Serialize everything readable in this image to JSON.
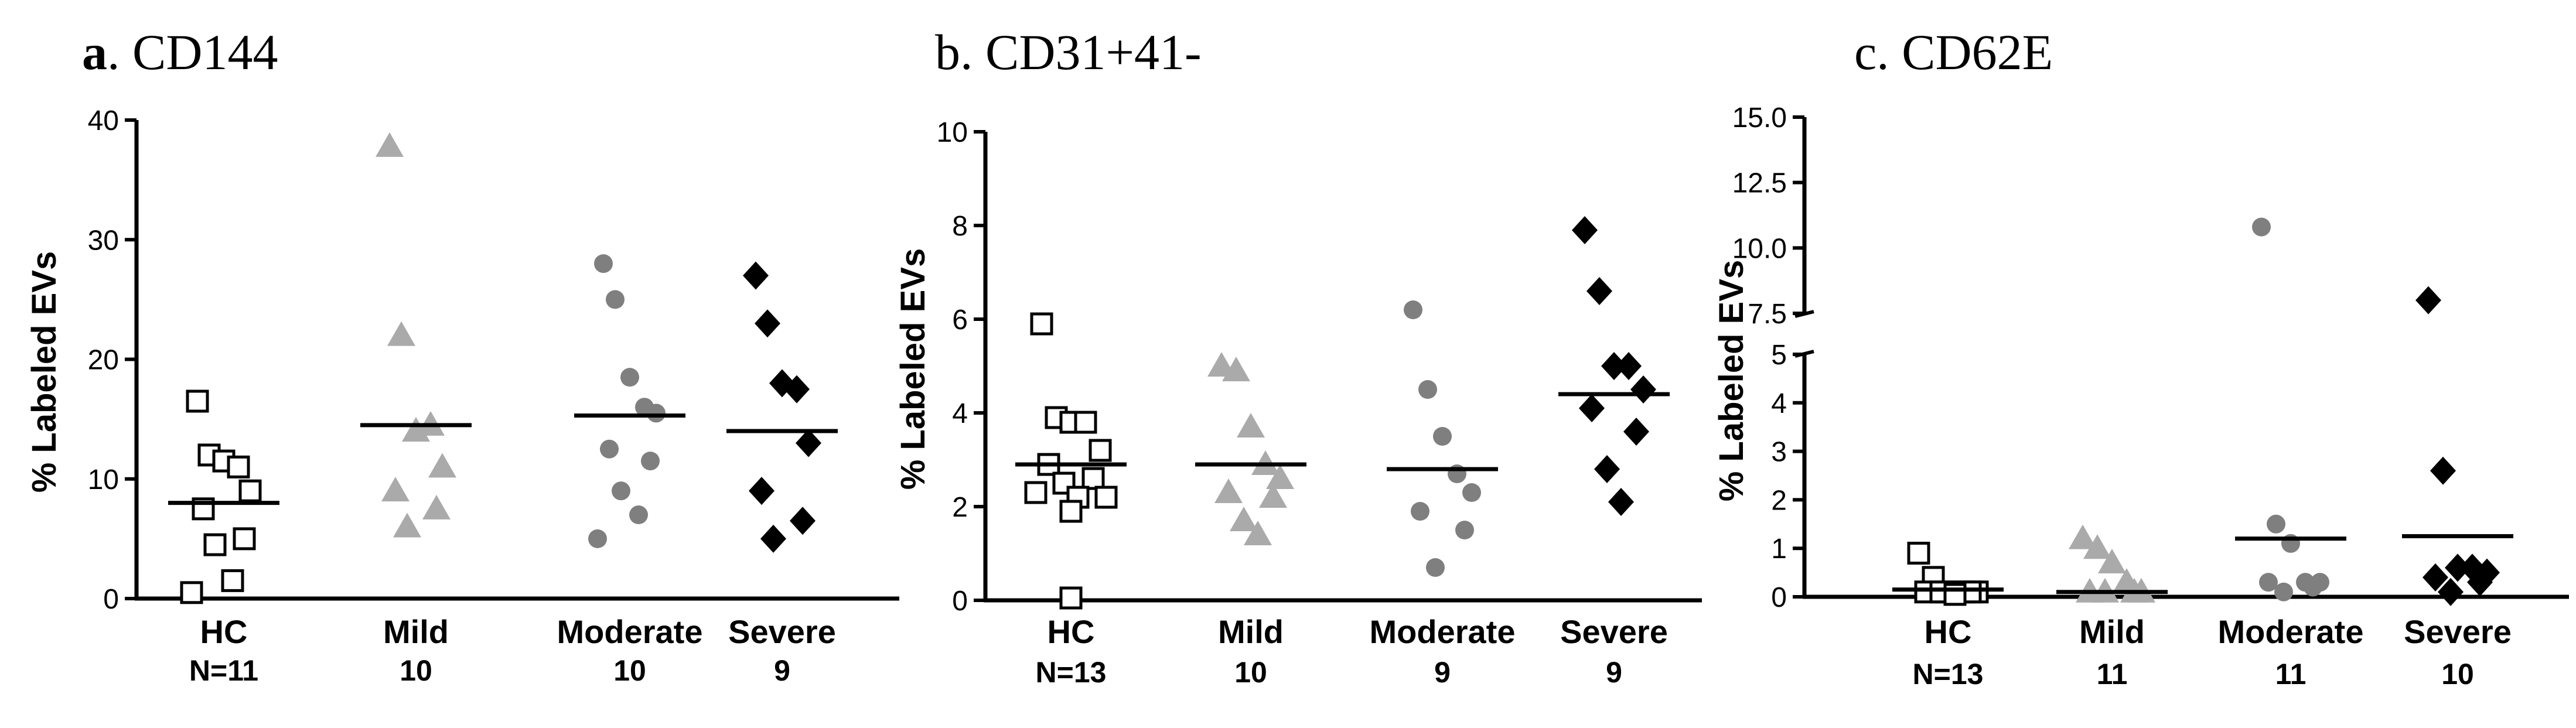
{
  "colors": {
    "HC": "#000000",
    "Mild": "#aaaaaa",
    "Moderate": "#7f7f7f",
    "Severe": "#000000"
  },
  "chart_data": [
    {
      "type": "scatter",
      "panel_letter": "a",
      "title": ". CD144",
      "ylabel": "% Labeled EVs",
      "ylim": [
        0,
        40
      ],
      "yticks": [
        "0",
        "10",
        "20",
        "30",
        "40"
      ],
      "categories": [
        "HC",
        "Mild",
        "Moderate",
        "Severe"
      ],
      "counts": [
        "N=11",
        "10",
        "10",
        "9"
      ],
      "series": [
        {
          "name": "HC",
          "marker": "open-square",
          "values": [
            16.5,
            12,
            11.5,
            11,
            9,
            7.5,
            5,
            4.5,
            1.5,
            0.5
          ],
          "mean": 8
        },
        {
          "name": "Mild",
          "marker": "triangle",
          "values": [
            37.8,
            22,
            14,
            14.5,
            11,
            9,
            7.5,
            6
          ],
          "mean": 14.5
        },
        {
          "name": "Moderate",
          "marker": "circle",
          "values": [
            28,
            25,
            18.5,
            16,
            15.5,
            12.5,
            11.5,
            9,
            7,
            5
          ],
          "mean": 15.3
        },
        {
          "name": "Severe",
          "marker": "diamond",
          "values": [
            27,
            23,
            18,
            17.5,
            13,
            9,
            6.5,
            5
          ],
          "mean": 14
        }
      ]
    },
    {
      "type": "scatter",
      "panel_letter": "",
      "title": "b. CD31+41-",
      "ylabel": "% Labeled EVs",
      "ylim": [
        0,
        10
      ],
      "yticks": [
        "0",
        "2",
        "4",
        "6",
        "8",
        "10"
      ],
      "categories": [
        "HC",
        "Mild",
        "Moderate",
        "Severe"
      ],
      "counts": [
        "N=13",
        "10",
        "9",
        "9"
      ],
      "series": [
        {
          "name": "HC",
          "marker": "open-square",
          "values": [
            5.9,
            3.9,
            3.8,
            3.8,
            3.2,
            2.9,
            2.6,
            2.5,
            2.2,
            2.3,
            2.2,
            1.9,
            0.05
          ],
          "mean": 2.9
        },
        {
          "name": "Mild",
          "marker": "triangle",
          "values": [
            5.0,
            4.9,
            3.7,
            2.9,
            2.6,
            2.3,
            2.2,
            1.7,
            1.4
          ],
          "mean": 2.9
        },
        {
          "name": "Moderate",
          "marker": "circle",
          "values": [
            6.2,
            4.5,
            3.5,
            2.7,
            2.3,
            1.9,
            1.5,
            0.7
          ],
          "mean": 2.8
        },
        {
          "name": "Severe",
          "marker": "diamond",
          "values": [
            7.9,
            6.6,
            5.0,
            5.0,
            4.5,
            4.1,
            3.6,
            2.8,
            2.1
          ],
          "mean": 4.4
        }
      ]
    },
    {
      "type": "scatter",
      "panel_letter": "",
      "title": "c. CD62E",
      "ylabel": "% Labeled EVs",
      "ylim": [
        0,
        15
      ],
      "axis_break": [
        5,
        7.5
      ],
      "yticks_lower": [
        "0",
        "1",
        "2",
        "3",
        "4",
        "5"
      ],
      "yticks_upper": [
        "7.5",
        "10.0",
        "12.5",
        "15.0"
      ],
      "categories": [
        "HC",
        "Mild",
        "Moderate",
        "Severe"
      ],
      "counts": [
        "N=13",
        "11",
        "11",
        "10"
      ],
      "series": [
        {
          "name": "HC",
          "marker": "open-square",
          "values": [
            0.9,
            0.4,
            0.1,
            0.1,
            0.1,
            0.1,
            0.1,
            0.1,
            0.05
          ],
          "mean": 0.15
        },
        {
          "name": "Mild",
          "marker": "triangle",
          "values": [
            1.2,
            1.0,
            0.7,
            0.3,
            0.1,
            0.1,
            0.1,
            0.1
          ],
          "mean": 0.1
        },
        {
          "name": "Moderate",
          "marker": "circle",
          "values": [
            10.8,
            1.5,
            1.1,
            0.3,
            0.3,
            0.3,
            0.2,
            0.1
          ],
          "mean": 1.2
        },
        {
          "name": "Severe",
          "marker": "diamond",
          "values": [
            8.0,
            2.6,
            0.6,
            0.6,
            0.5,
            0.4,
            0.3,
            0.1
          ],
          "mean": 1.25
        }
      ]
    }
  ]
}
